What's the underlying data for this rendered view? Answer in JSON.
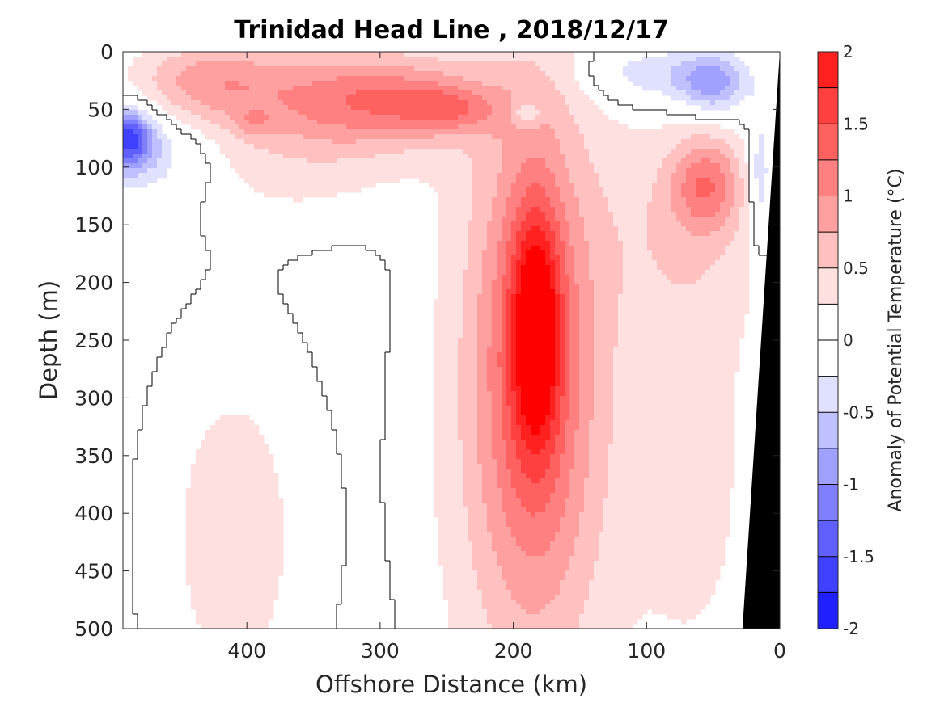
{
  "chart_data": {
    "type": "heatmap",
    "title": "Trinidad Head Line , 2018/12/17",
    "xlabel": "Offshore Distance (km)",
    "ylabel": "Depth (m)",
    "xlim": [
      493,
      0
    ],
    "ylim": [
      500,
      0
    ],
    "x_direction": "reversed",
    "y_direction": "reversed",
    "x_ticks": [
      400,
      300,
      200,
      100,
      0
    ],
    "y_ticks": [
      0,
      50,
      100,
      150,
      200,
      250,
      300,
      350,
      400,
      450,
      500
    ],
    "colorbar": {
      "label": "Anomaly of Potential Temperature (°C)",
      "range": [
        -2,
        2
      ],
      "ticks": [
        2,
        1.5,
        1,
        0.5,
        0,
        -0.5,
        -1,
        -1.5,
        -2
      ],
      "levels": [
        -2,
        -1.75,
        -1.5,
        -1.25,
        -1,
        -0.75,
        -0.5,
        -0.25,
        0,
        0.25,
        0.5,
        0.75,
        1,
        1.25,
        1.5,
        1.75,
        2
      ],
      "colors": [
        "#0000ff",
        "#2020ff",
        "#4040ff",
        "#6060ff",
        "#8080ff",
        "#a0a0ff",
        "#c0c0ff",
        "#e0e0ff",
        "#ffffff",
        "#ffffff",
        "#ffe0e0",
        "#ffc0c0",
        "#ffa0a0",
        "#ff8080",
        "#ff6060",
        "#ff4040",
        "#ff2020",
        "#ff0000"
      ]
    },
    "features": [
      {
        "name": "core-warm-anomaly",
        "center_km": 183,
        "center_depth_m": 240,
        "value": 1.3,
        "sigma_km": 12,
        "sigma_depth_m": 70
      },
      {
        "name": "warm-column",
        "center_km": 185,
        "center_depth_m": 260,
        "value": 1.0,
        "sigma_km": 30,
        "sigma_depth_m": 150
      },
      {
        "name": "broad-warm-plume",
        "center_km": 185,
        "center_depth_m": 330,
        "value": 0.55,
        "sigma_km": 55,
        "sigma_depth_m": 220
      },
      {
        "name": "surface-warm-layer-300km",
        "center_km": 300,
        "center_depth_m": 40,
        "value": 1.0,
        "sigma_km": 55,
        "sigma_depth_m": 28
      },
      {
        "name": "surface-warm-peak-250km",
        "center_km": 250,
        "center_depth_m": 50,
        "value": 0.6,
        "sigma_km": 25,
        "sigma_depth_m": 14
      },
      {
        "name": "surface-warm-layer-430km",
        "center_km": 430,
        "center_depth_m": 25,
        "value": 0.75,
        "sigma_km": 40,
        "sigma_depth_m": 25
      },
      {
        "name": "warm-layer-360km",
        "center_km": 360,
        "center_depth_m": 70,
        "value": 0.45,
        "sigma_km": 60,
        "sigma_depth_m": 50
      },
      {
        "name": "warm-lens-395km",
        "center_km": 395,
        "center_depth_m": 62,
        "value": 0.35,
        "sigma_km": 10,
        "sigma_depth_m": 8
      },
      {
        "name": "deep-warm-lens-410km",
        "center_km": 410,
        "center_depth_m": 420,
        "value": 0.35,
        "sigma_km": 45,
        "sigma_depth_m": 130
      },
      {
        "name": "nearshore-warm-eddy",
        "center_km": 55,
        "center_depth_m": 115,
        "value": 0.9,
        "sigma_km": 18,
        "sigma_depth_m": 28
      },
      {
        "name": "nearshore-warm-layer",
        "center_km": 70,
        "center_depth_m": 150,
        "value": 0.35,
        "sigma_km": 45,
        "sigma_depth_m": 70
      },
      {
        "name": "nearshore-deep-warm",
        "center_km": 60,
        "center_depth_m": 360,
        "value": 0.3,
        "sigma_km": 35,
        "sigma_depth_m": 160
      },
      {
        "name": "offshore-cold-anomaly",
        "center_km": 490,
        "center_depth_m": 75,
        "value": -1.5,
        "sigma_km": 14,
        "sigma_depth_m": 18
      },
      {
        "name": "offshore-cold-layer",
        "center_km": 470,
        "center_depth_m": 90,
        "value": -0.4,
        "sigma_km": 30,
        "sigma_depth_m": 25
      },
      {
        "name": "surface-cold-anomaly-50km",
        "center_km": 50,
        "center_depth_m": 28,
        "value": -0.9,
        "sigma_km": 18,
        "sigma_depth_m": 18
      },
      {
        "name": "surface-cold-layer-100km",
        "center_km": 95,
        "center_depth_m": 20,
        "value": -0.5,
        "sigma_km": 35,
        "sigma_depth_m": 18
      },
      {
        "name": "cold-lens-190km",
        "center_km": 190,
        "center_depth_m": 53,
        "value": -0.5,
        "sigma_km": 8,
        "sigma_depth_m": 8
      },
      {
        "name": "nearshore-cold-strip",
        "center_km": 15,
        "center_depth_m": 110,
        "value": -0.6,
        "sigma_km": 6,
        "sigma_depth_m": 40
      }
    ],
    "grid": false,
    "colorbar_position": "right"
  }
}
